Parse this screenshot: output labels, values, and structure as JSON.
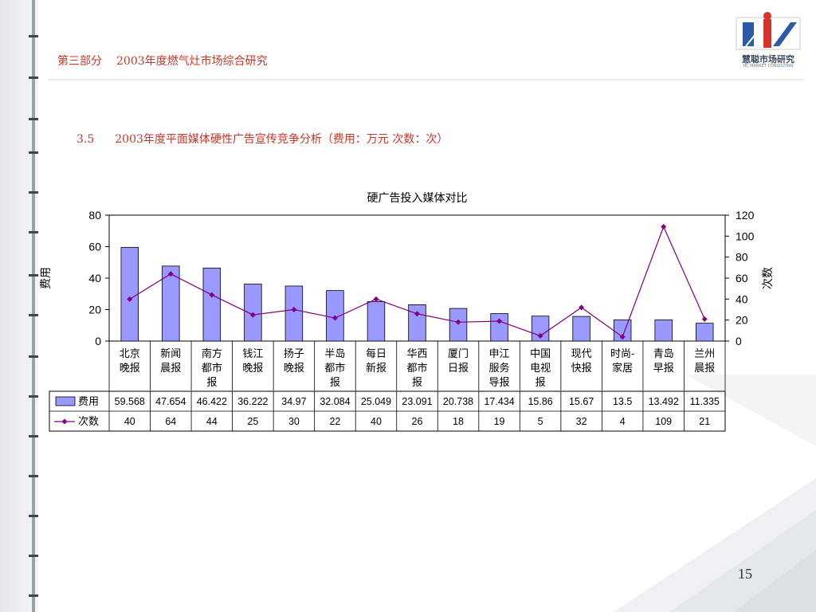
{
  "header": {
    "part": "第三部分",
    "title": "2003年度燃气灶市场综合研究"
  },
  "logo": {
    "name": "慧聪市场研究",
    "sub": "HC MARKET CONSULTING"
  },
  "section": {
    "number": "3.5",
    "title": "2003年度平面媒体硬性广告宣传竞争分析（费用：万元   次数：次）"
  },
  "page_number": "15",
  "colors": {
    "bar_fill": "#9999ff",
    "line": "#800080",
    "header_red": "#c0392b"
  },
  "chart_data": {
    "type": "bar",
    "title": "硬广告投入媒体对比",
    "categories": [
      [
        "北京",
        "晚报"
      ],
      [
        "新闻",
        "晨报"
      ],
      [
        "南方",
        "都市",
        "报"
      ],
      [
        "钱江",
        "晚报"
      ],
      [
        "扬子",
        "晚报"
      ],
      [
        "半岛",
        "都市",
        "报"
      ],
      [
        "每日",
        "新报"
      ],
      [
        "华西",
        "都市",
        "报"
      ],
      [
        "厦门",
        "日报"
      ],
      [
        "申江",
        "服务",
        "导报"
      ],
      [
        "中国",
        "电视",
        "报"
      ],
      [
        "现代",
        "快报"
      ],
      [
        "时尚-",
        "家居"
      ],
      [
        "青岛",
        "早报"
      ],
      [
        "兰州",
        "晨报"
      ]
    ],
    "series": [
      {
        "name": "费用",
        "type": "bar",
        "axis": "left",
        "values": [
          59.568,
          47.654,
          46.422,
          36.222,
          34.97,
          32.084,
          25.049,
          23.091,
          20.738,
          17.434,
          15.86,
          15.67,
          13.5,
          13.492,
          11.335
        ],
        "labels": [
          "59.568",
          "47.654",
          "46.422",
          "36.222",
          "34.97",
          "32.084",
          "25.049",
          "23.091",
          "20.738",
          "17.434",
          "15.86",
          "15.67",
          "13.5",
          "13.492",
          "11.335"
        ]
      },
      {
        "name": "次数",
        "type": "line",
        "axis": "right",
        "values": [
          40,
          64,
          44,
          25,
          30,
          22,
          40,
          26,
          18,
          19,
          5,
          32,
          4,
          109,
          21
        ],
        "labels": [
          "40",
          "64",
          "44",
          "25",
          "30",
          "22",
          "40",
          "26",
          "18",
          "19",
          "5",
          "32",
          "4",
          "109",
          "21"
        ]
      }
    ],
    "ylabel": "费用",
    "y2label": "次数",
    "ylim": [
      0,
      80
    ],
    "y2lim": [
      0,
      120
    ],
    "yticks": [
      "0",
      "20",
      "40",
      "60",
      "80"
    ],
    "y2ticks": [
      "0",
      "20",
      "40",
      "60",
      "80",
      "100",
      "120"
    ],
    "grid": false,
    "legend": "data-table"
  }
}
